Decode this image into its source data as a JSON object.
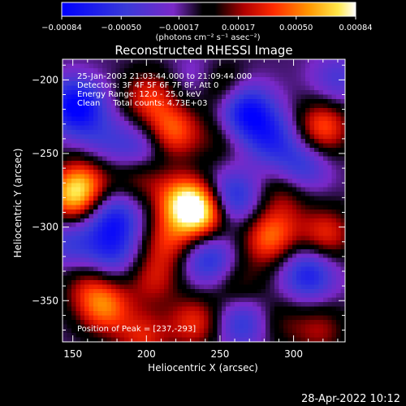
{
  "chart_data": {
    "type": "heatmap",
    "title": "Reconstructed RHESSI Image",
    "xlabel": "Heliocentric X (arcsec)",
    "ylabel": "Heliocentric Y (arcsec)",
    "xlim": [
      143,
      335
    ],
    "ylim": [
      -378,
      -186
    ],
    "x_ticks": [
      150,
      200,
      250,
      300
    ],
    "y_ticks": [
      -200,
      -250,
      -300,
      -350
    ],
    "x_tick_labels": [
      "150",
      "200",
      "250",
      "300"
    ],
    "y_tick_labels": [
      "−200",
      "−250",
      "−300",
      "−350"
    ],
    "colorbar": {
      "min": -0.00084,
      "max": 0.00084,
      "ticks": [
        -0.00084,
        -0.0005,
        -0.00017,
        0.00017,
        0.0005,
        0.00084
      ],
      "tick_labels": [
        "−0.00084",
        "−0.00050",
        "−0.00017",
        "0.00017",
        "0.00050",
        "0.00084"
      ],
      "unit_label": "(photons cm⁻² s⁻¹ asec⁻²)"
    },
    "annotations": [
      "25-Jan-2003 21:03:44.000 to 21:09:44.000",
      "Detectors: 3F 4F 5F 6F 7F 8F, Att 0",
      "Energy Range: 12.0 - 25.0 keV",
      "Clean     Total counts: 4.73E+03"
    ],
    "peak_label": "Position of Peak = [237,-293]",
    "peak": {
      "x": 237,
      "y": -293,
      "value": 0.00084
    },
    "features": [
      {
        "x": 237,
        "y": -290,
        "value": 0.00084
      },
      {
        "x": 224,
        "y": -282,
        "value": 0.0006
      },
      {
        "x": 150,
        "y": -280,
        "value": 0.00065
      },
      {
        "x": 158,
        "y": -268,
        "value": 0.0004
      },
      {
        "x": 195,
        "y": -262,
        "value": 0.00045
      },
      {
        "x": 215,
        "y": -310,
        "value": 0.0004
      },
      {
        "x": 205,
        "y": -335,
        "value": 0.00035
      },
      {
        "x": 218,
        "y": -235,
        "value": 0.00055
      },
      {
        "x": 202,
        "y": -212,
        "value": 0.00045
      },
      {
        "x": 250,
        "y": -205,
        "value": 0.0003
      },
      {
        "x": 172,
        "y": -355,
        "value": 0.00055
      },
      {
        "x": 160,
        "y": -340,
        "value": 0.0003
      },
      {
        "x": 198,
        "y": -375,
        "value": 0.0004
      },
      {
        "x": 233,
        "y": -365,
        "value": 0.00045
      },
      {
        "x": 262,
        "y": -340,
        "value": 0.00025
      },
      {
        "x": 282,
        "y": -310,
        "value": 0.0004
      },
      {
        "x": 295,
        "y": -275,
        "value": 0.0003
      },
      {
        "x": 320,
        "y": -232,
        "value": 0.00055
      },
      {
        "x": 322,
        "y": -305,
        "value": 0.00045
      },
      {
        "x": 288,
        "y": -300,
        "value": 0.00025
      },
      {
        "x": 318,
        "y": -370,
        "value": 0.0003
      },
      {
        "x": 290,
        "y": -365,
        "value": 0.0002
      },
      {
        "x": 250,
        "y": -240,
        "value": 0.00018
      },
      {
        "x": 195,
        "y": -250,
        "value": -0.0005
      },
      {
        "x": 152,
        "y": -218,
        "value": -0.00075
      },
      {
        "x": 268,
        "y": -222,
        "value": -0.0007
      },
      {
        "x": 285,
        "y": -240,
        "value": -0.00045
      },
      {
        "x": 258,
        "y": -280,
        "value": -0.00055
      },
      {
        "x": 178,
        "y": -295,
        "value": -0.00055
      },
      {
        "x": 176,
        "y": -318,
        "value": -0.0004
      },
      {
        "x": 242,
        "y": -322,
        "value": -0.0005
      },
      {
        "x": 305,
        "y": -260,
        "value": -0.00045
      },
      {
        "x": 310,
        "y": -332,
        "value": -0.00055
      },
      {
        "x": 265,
        "y": -365,
        "value": -0.00045
      },
      {
        "x": 148,
        "y": -310,
        "value": -0.00035
      },
      {
        "x": 170,
        "y": -240,
        "value": -0.00025
      },
      {
        "x": 235,
        "y": -200,
        "value": -0.0002
      },
      {
        "x": 330,
        "y": -200,
        "value": -0.0003
      }
    ]
  },
  "footer_date": "28-Apr-2022 10:12"
}
